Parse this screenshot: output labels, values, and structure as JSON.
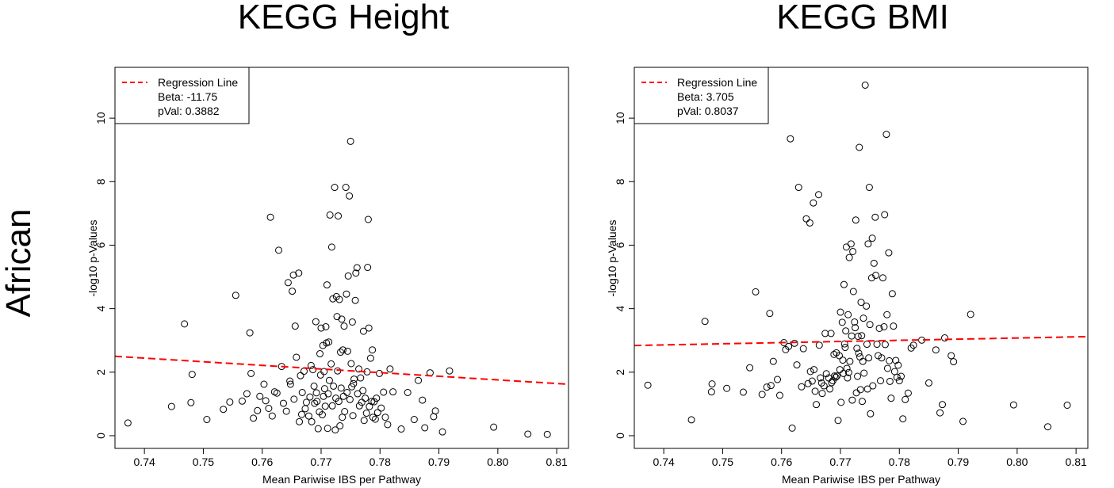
{
  "row_label": "African",
  "colors": {
    "regression": "#ff0000",
    "points": "#000000",
    "frame": "#000000"
  },
  "chart_data": [
    {
      "type": "scatter",
      "title": "KEGG Height",
      "xlabel": "Mean Pariwise IBS per Pathway",
      "ylabel": "-log10 p-Values",
      "xlim": [
        0.735,
        0.812
      ],
      "ylim": [
        -0.4,
        11.6
      ],
      "xticks": [
        "0.74",
        "0.75",
        "0.76",
        "0.77",
        "0.78",
        "0.79",
        "0.80",
        "0.81"
      ],
      "yticks": [
        "0",
        "2",
        "4",
        "6",
        "8",
        "10"
      ],
      "grid": false,
      "legend_position": "top-left",
      "legend": {
        "label": "Regression Line",
        "beta": "Beta: -11.75",
        "pval": "pVal: 0.3882"
      },
      "regression": {
        "x": [
          0.735,
          0.812
        ],
        "y": [
          2.5,
          1.62
        ]
      },
      "points": [
        [
          0.7372,
          0.4
        ],
        [
          0.7446,
          0.92
        ],
        [
          0.7468,
          3.52
        ],
        [
          0.7479,
          1.04
        ],
        [
          0.7481,
          1.93
        ],
        [
          0.7506,
          0.51
        ],
        [
          0.7534,
          0.83
        ],
        [
          0.7545,
          1.06
        ],
        [
          0.7555,
          4.42
        ],
        [
          0.7566,
          1.09
        ],
        [
          0.7574,
          1.32
        ],
        [
          0.7579,
          3.24
        ],
        [
          0.7581,
          1.96
        ],
        [
          0.7585,
          0.55
        ],
        [
          0.7592,
          0.79
        ],
        [
          0.7596,
          1.24
        ],
        [
          0.7603,
          1.62
        ],
        [
          0.7606,
          1.1
        ],
        [
          0.7611,
          0.86
        ],
        [
          0.7614,
          6.88
        ],
        [
          0.7617,
          0.62
        ],
        [
          0.7621,
          1.38
        ],
        [
          0.7625,
          1.34
        ],
        [
          0.7628,
          5.84
        ],
        [
          0.7633,
          2.18
        ],
        [
          0.7636,
          1.02
        ],
        [
          0.7641,
          0.77
        ],
        [
          0.7644,
          4.82
        ],
        [
          0.7647,
          1.72
        ],
        [
          0.7648,
          1.62
        ],
        [
          0.7651,
          4.55
        ],
        [
          0.7653,
          5.06
        ],
        [
          0.7654,
          1.15
        ],
        [
          0.7656,
          3.45
        ],
        [
          0.7658,
          2.47
        ],
        [
          0.7662,
          5.12
        ],
        [
          0.7663,
          0.44
        ],
        [
          0.7665,
          1.89
        ],
        [
          0.7667,
          0.67
        ],
        [
          0.7668,
          1.36
        ],
        [
          0.7671,
          2.03
        ],
        [
          0.7673,
          0.85
        ],
        [
          0.7675,
          1.05
        ],
        [
          0.7679,
          0.62
        ],
        [
          0.7681,
          1.22
        ],
        [
          0.7683,
          2.21
        ],
        [
          0.7684,
          0.44
        ],
        [
          0.7686,
          2.08
        ],
        [
          0.7688,
          1.56
        ],
        [
          0.7689,
          1.02
        ],
        [
          0.7691,
          3.59
        ],
        [
          0.7692,
          1.35
        ],
        [
          0.7693,
          1.08
        ],
        [
          0.7695,
          0.22
        ],
        [
          0.7697,
          0.75
        ],
        [
          0.7698,
          2.58
        ],
        [
          0.7699,
          1.91
        ],
        [
          0.77,
          3.39
        ],
        [
          0.7702,
          0.66
        ],
        [
          0.7703,
          2.84
        ],
        [
          0.7704,
          1.24
        ],
        [
          0.7705,
          2.02
        ],
        [
          0.7706,
          1.48
        ],
        [
          0.7707,
          0.93
        ],
        [
          0.7708,
          3.43
        ],
        [
          0.7709,
          2.92
        ],
        [
          0.771,
          4.75
        ],
        [
          0.7711,
          0.23
        ],
        [
          0.7712,
          1.32
        ],
        [
          0.7713,
          2.95
        ],
        [
          0.7714,
          1.74
        ],
        [
          0.7715,
          6.95
        ],
        [
          0.7717,
          2.26
        ],
        [
          0.7718,
          5.94
        ],
        [
          0.7719,
          0.94
        ],
        [
          0.772,
          4.31
        ],
        [
          0.7721,
          1.56
        ],
        [
          0.7723,
          7.82
        ],
        [
          0.7724,
          0.18
        ],
        [
          0.7725,
          1.18
        ],
        [
          0.7726,
          4.38
        ],
        [
          0.7727,
          3.75
        ],
        [
          0.7728,
          2.04
        ],
        [
          0.7729,
          6.92
        ],
        [
          0.773,
          1.08
        ],
        [
          0.7731,
          4.29
        ],
        [
          0.7732,
          0.31
        ],
        [
          0.7733,
          2.63
        ],
        [
          0.7734,
          1.5
        ],
        [
          0.7735,
          3.67
        ],
        [
          0.7736,
          0.58
        ],
        [
          0.7737,
          2.7
        ],
        [
          0.7738,
          1.24
        ],
        [
          0.7739,
          3.45
        ],
        [
          0.774,
          0.76
        ],
        [
          0.7742,
          7.82
        ],
        [
          0.7743,
          4.46
        ],
        [
          0.7744,
          1.36
        ],
        [
          0.7745,
          2.66
        ],
        [
          0.7746,
          5.03
        ],
        [
          0.7748,
          7.55
        ],
        [
          0.7749,
          1.14
        ],
        [
          0.775,
          9.27
        ],
        [
          0.7751,
          2.27
        ],
        [
          0.7752,
          1.54
        ],
        [
          0.7753,
          3.58
        ],
        [
          0.7754,
          0.63
        ],
        [
          0.7755,
          1.64
        ],
        [
          0.7756,
          1.78
        ],
        [
          0.7758,
          4.26
        ],
        [
          0.7759,
          5.12
        ],
        [
          0.7761,
          5.29
        ],
        [
          0.7762,
          1.32
        ],
        [
          0.7764,
          2.1
        ],
        [
          0.7765,
          0.94
        ],
        [
          0.7767,
          1.82
        ],
        [
          0.7769,
          1.05
        ],
        [
          0.7771,
          1.42
        ],
        [
          0.7772,
          3.29
        ],
        [
          0.7773,
          0.48
        ],
        [
          0.7775,
          1.18
        ],
        [
          0.7777,
          0.71
        ],
        [
          0.7778,
          2.01
        ],
        [
          0.7779,
          5.3
        ],
        [
          0.778,
          6.81
        ],
        [
          0.7781,
          3.39
        ],
        [
          0.7782,
          0.92
        ],
        [
          0.7784,
          2.44
        ],
        [
          0.7786,
          1.08
        ],
        [
          0.7787,
          2.7
        ],
        [
          0.7788,
          0.58
        ],
        [
          0.779,
          1.07
        ],
        [
          0.7792,
          0.52
        ],
        [
          0.7794,
          1.18
        ],
        [
          0.7796,
          0.73
        ],
        [
          0.7799,
          1.96
        ],
        [
          0.7802,
          0.87
        ],
        [
          0.7806,
          1.37
        ],
        [
          0.7809,
          0.58
        ],
        [
          0.7813,
          0.35
        ],
        [
          0.7817,
          2.1
        ],
        [
          0.7822,
          1.38
        ],
        [
          0.7836,
          0.21
        ],
        [
          0.7847,
          1.36
        ],
        [
          0.7858,
          0.51
        ],
        [
          0.7865,
          1.74
        ],
        [
          0.7872,
          1.12
        ],
        [
          0.7876,
          0.25
        ],
        [
          0.7885,
          1.98
        ],
        [
          0.7891,
          0.6
        ],
        [
          0.7894,
          0.78
        ],
        [
          0.7906,
          0.12
        ],
        [
          0.7918,
          2.04
        ],
        [
          0.7993,
          0.27
        ],
        [
          0.8051,
          0.05
        ],
        [
          0.8084,
          0.04
        ]
      ]
    },
    {
      "type": "scatter",
      "title": "KEGG BMI",
      "xlabel": "Mean Pariwise IBS per Pathway",
      "ylabel": "-log10 p-Values",
      "xlim": [
        0.735,
        0.812
      ],
      "ylim": [
        -0.4,
        11.6
      ],
      "xticks": [
        "0.74",
        "0.75",
        "0.76",
        "0.77",
        "0.78",
        "0.79",
        "0.80",
        "0.81"
      ],
      "yticks": [
        "0",
        "2",
        "4",
        "6",
        "8",
        "10"
      ],
      "grid": false,
      "legend_position": "top-left",
      "legend": {
        "label": "Regression Line",
        "beta": "Beta: 3.705",
        "pval": "pVal: 0.8037"
      },
      "regression": {
        "x": [
          0.735,
          0.812
        ],
        "y": [
          2.84,
          3.12
        ]
      },
      "points": [
        [
          0.7373,
          1.59
        ],
        [
          0.7447,
          0.5
        ],
        [
          0.747,
          3.6
        ],
        [
          0.7481,
          1.38
        ],
        [
          0.7482,
          1.63
        ],
        [
          0.7507,
          1.49
        ],
        [
          0.7535,
          1.37
        ],
        [
          0.7546,
          2.14
        ],
        [
          0.7556,
          4.53
        ],
        [
          0.7567,
          1.3
        ],
        [
          0.7575,
          1.53
        ],
        [
          0.758,
          3.85
        ],
        [
          0.7582,
          1.58
        ],
        [
          0.7586,
          2.34
        ],
        [
          0.7593,
          1.77
        ],
        [
          0.7597,
          1.27
        ],
        [
          0.7604,
          2.93
        ],
        [
          0.7607,
          2.71
        ],
        [
          0.7612,
          2.81
        ],
        [
          0.7615,
          9.35
        ],
        [
          0.7618,
          0.24
        ],
        [
          0.7622,
          2.91
        ],
        [
          0.7626,
          2.23
        ],
        [
          0.7629,
          7.82
        ],
        [
          0.7634,
          1.54
        ],
        [
          0.7637,
          2.74
        ],
        [
          0.7642,
          6.83
        ],
        [
          0.7645,
          1.64
        ],
        [
          0.7648,
          6.7
        ],
        [
          0.7649,
          2.02
        ],
        [
          0.7652,
          1.72
        ],
        [
          0.7654,
          7.33
        ],
        [
          0.7655,
          2.08
        ],
        [
          0.7657,
          1.4
        ],
        [
          0.7659,
          0.98
        ],
        [
          0.7663,
          7.59
        ],
        [
          0.7664,
          2.85
        ],
        [
          0.7666,
          1.82
        ],
        [
          0.7668,
          1.66
        ],
        [
          0.7669,
          1.33
        ],
        [
          0.7672,
          1.57
        ],
        [
          0.7674,
          3.22
        ],
        [
          0.7676,
          1.95
        ],
        [
          0.768,
          1.82
        ],
        [
          0.7682,
          1.47
        ],
        [
          0.7684,
          3.22
        ],
        [
          0.7685,
          1.67
        ],
        [
          0.7687,
          1.73
        ],
        [
          0.7689,
          2.56
        ],
        [
          0.769,
          1.88
        ],
        [
          0.7692,
          1.84
        ],
        [
          0.7693,
          2.61
        ],
        [
          0.7694,
          1.88
        ],
        [
          0.7696,
          0.48
        ],
        [
          0.7698,
          2.52
        ],
        [
          0.7699,
          2.08
        ],
        [
          0.77,
          3.89
        ],
        [
          0.7701,
          1.05
        ],
        [
          0.7703,
          3.57
        ],
        [
          0.7704,
          2.38
        ],
        [
          0.7705,
          1.96
        ],
        [
          0.7706,
          4.76
        ],
        [
          0.7707,
          2.89
        ],
        [
          0.7708,
          2.78
        ],
        [
          0.7709,
          3.3
        ],
        [
          0.771,
          5.94
        ],
        [
          0.7711,
          2.12
        ],
        [
          0.7712,
          1.82
        ],
        [
          0.7713,
          3.81
        ],
        [
          0.7714,
          1.99
        ],
        [
          0.7715,
          5.61
        ],
        [
          0.7716,
          2.34
        ],
        [
          0.7718,
          6.04
        ],
        [
          0.7719,
          3.14
        ],
        [
          0.772,
          1.12
        ],
        [
          0.7721,
          5.8
        ],
        [
          0.7722,
          4.54
        ],
        [
          0.7724,
          3.58
        ],
        [
          0.7725,
          3.4
        ],
        [
          0.7726,
          6.79
        ],
        [
          0.7727,
          1.35
        ],
        [
          0.7728,
          2.75
        ],
        [
          0.7729,
          1.87
        ],
        [
          0.773,
          3.13
        ],
        [
          0.7731,
          2.6
        ],
        [
          0.7732,
          9.08
        ],
        [
          0.7733,
          2.48
        ],
        [
          0.7734,
          1.45
        ],
        [
          0.7735,
          4.2
        ],
        [
          0.7736,
          3.15
        ],
        [
          0.7737,
          1.08
        ],
        [
          0.7738,
          2.34
        ],
        [
          0.7739,
          3.7
        ],
        [
          0.774,
          1.97
        ],
        [
          0.7742,
          11.04
        ],
        [
          0.7744,
          4.08
        ],
        [
          0.7745,
          2.88
        ],
        [
          0.7746,
          1.47
        ],
        [
          0.7747,
          6.04
        ],
        [
          0.7748,
          2.45
        ],
        [
          0.7749,
          7.82
        ],
        [
          0.775,
          3.5
        ],
        [
          0.7751,
          0.69
        ],
        [
          0.7753,
          4.97
        ],
        [
          0.7754,
          6.22
        ],
        [
          0.7755,
          1.57
        ],
        [
          0.7757,
          5.43
        ],
        [
          0.7759,
          6.88
        ],
        [
          0.776,
          5.05
        ],
        [
          0.7762,
          2.88
        ],
        [
          0.7764,
          2.52
        ],
        [
          0.7766,
          3.38
        ],
        [
          0.7768,
          1.73
        ],
        [
          0.777,
          2.45
        ],
        [
          0.7772,
          4.97
        ],
        [
          0.7774,
          3.43
        ],
        [
          0.7775,
          6.96
        ],
        [
          0.7776,
          2.87
        ],
        [
          0.7778,
          9.49
        ],
        [
          0.7779,
          3.81
        ],
        [
          0.778,
          2.12
        ],
        [
          0.7782,
          5.76
        ],
        [
          0.7783,
          2.36
        ],
        [
          0.7784,
          1.71
        ],
        [
          0.7786,
          1.18
        ],
        [
          0.7788,
          4.47
        ],
        [
          0.779,
          3.45
        ],
        [
          0.7792,
          2.02
        ],
        [
          0.7794,
          2.37
        ],
        [
          0.7796,
          1.84
        ],
        [
          0.7798,
          2.22
        ],
        [
          0.78,
          1.73
        ],
        [
          0.7803,
          1.87
        ],
        [
          0.7806,
          0.53
        ],
        [
          0.781,
          1.14
        ],
        [
          0.7815,
          1.34
        ],
        [
          0.782,
          2.76
        ],
        [
          0.7824,
          2.85
        ],
        [
          0.7838,
          3.01
        ],
        [
          0.785,
          1.66
        ],
        [
          0.7862,
          2.7
        ],
        [
          0.7869,
          0.72
        ],
        [
          0.7873,
          0.98
        ],
        [
          0.7877,
          3.08
        ],
        [
          0.7888,
          2.52
        ],
        [
          0.7892,
          2.33
        ],
        [
          0.7908,
          0.45
        ],
        [
          0.7921,
          3.82
        ],
        [
          0.7994,
          0.97
        ],
        [
          0.8052,
          0.28
        ],
        [
          0.8085,
          0.96
        ]
      ]
    }
  ]
}
